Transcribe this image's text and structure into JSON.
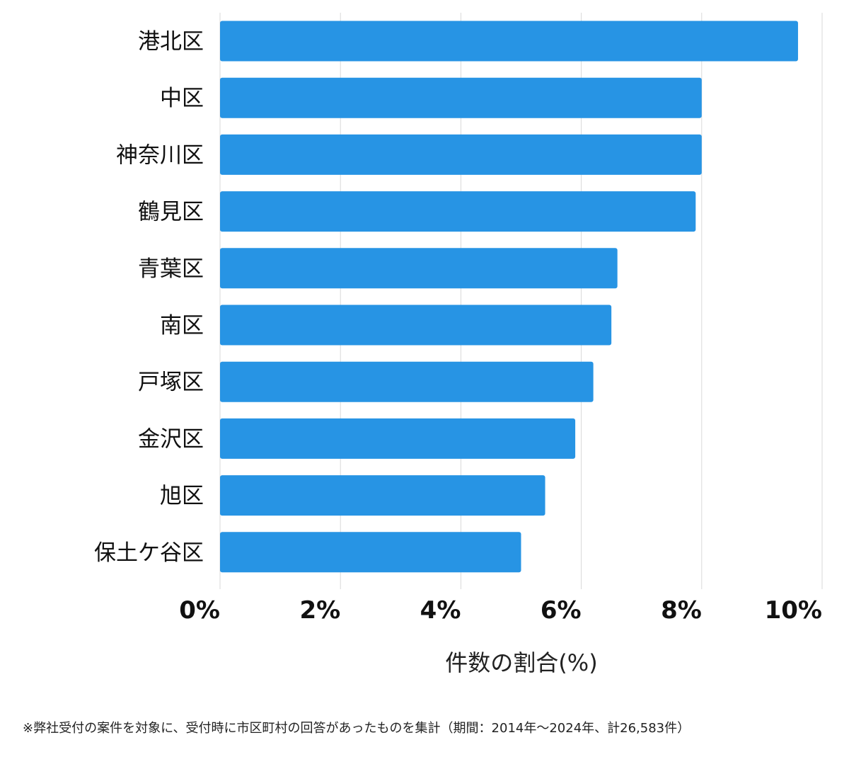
{
  "chart_data": {
    "type": "bar",
    "orientation": "horizontal",
    "categories": [
      "港北区",
      "中区",
      "神奈川区",
      "鶴見区",
      "青葉区",
      "南区",
      "戸塚区",
      "金沢区",
      "旭区",
      "保土ケ谷区"
    ],
    "values": [
      9.6,
      8.0,
      8.0,
      7.9,
      6.6,
      6.5,
      6.2,
      5.9,
      5.4,
      5.0
    ],
    "xlim": [
      0,
      10
    ],
    "x_ticks": [
      0,
      2,
      4,
      6,
      8,
      10
    ],
    "x_tick_labels": [
      "0%",
      "2%",
      "4%",
      "6%",
      "8%",
      "10%"
    ],
    "xlabel": "件数の割合(%)",
    "ylabel": "",
    "grid": "vertical",
    "bar_color": "#2794e4",
    "grid_color": "#d9d9d9"
  },
  "footnote": "※弊社受付の案件を対象に、受付時に市区町村の回答があったものを集計（期間：2014年～2024年、計26,583件）"
}
